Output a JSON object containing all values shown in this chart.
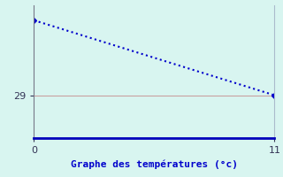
{
  "x": [
    0,
    11
  ],
  "y": [
    32.5,
    29
  ],
  "line_color": "#0000cc",
  "marker": "D",
  "marker_size": 3,
  "line_style": ":",
  "line_width": 1.5,
  "background_color": "#d8f5f0",
  "grid_color": "#c8a0a0",
  "bottom_axis_color": "#0000bb",
  "right_spine_color": "#aabbcc",
  "left_spine_color": "#777788",
  "xlabel": "Graphe des températures (°c)",
  "xlabel_color": "#0000cc",
  "xlabel_fontsize": 8,
  "yticks": [
    29
  ],
  "xticks": [
    0,
    11
  ],
  "xlim": [
    0,
    11
  ],
  "ylim": [
    27.0,
    33.2
  ],
  "tick_labelsize": 8,
  "tick_color": "#333355",
  "figsize": [
    3.2,
    2.0
  ],
  "dpi": 100
}
